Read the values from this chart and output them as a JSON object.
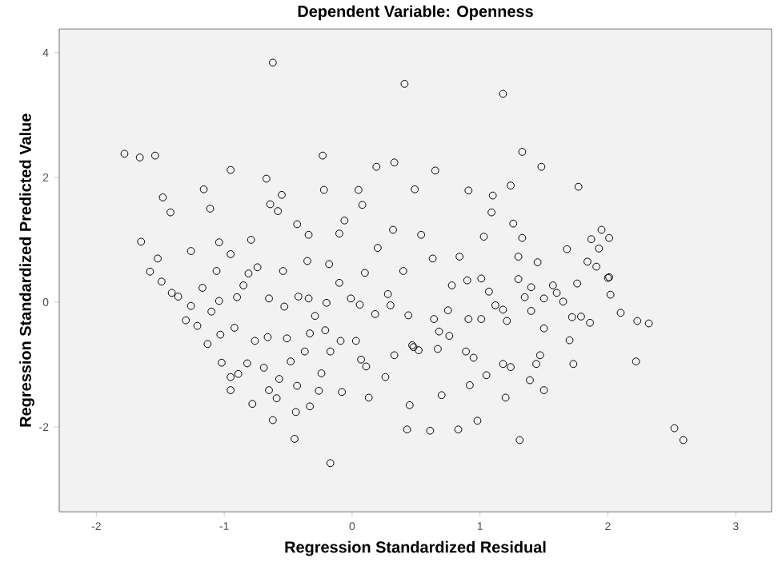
{
  "chart_data": {
    "type": "scatter",
    "title": "Dependent Variable: Openness",
    "xlabel": "Regression Standardized Residual",
    "ylabel": "Regression Standardized Predicted Value",
    "xlim": [
      -2.29,
      3.28
    ],
    "ylim": [
      -3.36,
      4.38
    ],
    "xticks": [
      -2,
      -1,
      0,
      1,
      2,
      3
    ],
    "yticks": [
      -2,
      0,
      2,
      4
    ],
    "marker": "circle",
    "grid": false,
    "series": [
      {
        "color": "#000000",
        "x": [
          -0.62,
          -1.78,
          -1.66,
          -1.54,
          0.41,
          -0.23,
          -0.95,
          -0.67,
          -1.16,
          -1.48,
          -1.42,
          -1.11,
          -0.55,
          -0.64,
          -0.58,
          -0.22,
          0.05,
          0.19,
          0.33,
          0.08,
          -0.06,
          -0.43,
          -1.04,
          -1.65,
          -1.26,
          -0.79,
          -0.34,
          -0.1,
          0.32,
          0.2,
          -0.18,
          -0.95,
          -1.52,
          -0.35,
          0.1,
          0.4,
          -1.58,
          1.18,
          1.33,
          1.48,
          0.65,
          0.49,
          0.91,
          1.1,
          1.24,
          1.77,
          1.09,
          1.26,
          1.33,
          1.03,
          0.54,
          1.95,
          2.01,
          1.87,
          1.93,
          1.68,
          1.3,
          0.84,
          0.63,
          1.84,
          1.91,
          1.45,
          2.01,
          -0.17,
          -0.45,
          -0.62,
          -0.78,
          -0.95,
          -0.95,
          -1.13,
          -1.3,
          -1.49,
          -0.44,
          -0.33,
          -0.26,
          -0.08,
          0.13,
          0.26,
          0.07,
          0.11,
          0.33,
          0.45,
          0.43,
          -0.24,
          -0.43,
          -0.59,
          -0.69,
          -0.89,
          -1.02,
          -0.82,
          -0.65,
          -0.57,
          -0.48,
          -0.37,
          -0.17,
          -0.09,
          0.03,
          -0.21,
          -0.33,
          -0.51,
          -0.66,
          -0.76,
          -0.92,
          -1.03,
          -1.21,
          -1.1,
          -1.26,
          -1.36,
          -1.41,
          -1.17,
          -1.04,
          -0.9,
          -0.85,
          -0.65,
          -0.53,
          -0.42,
          -0.34,
          -0.2,
          -0.29,
          -0.01,
          0.06,
          0.18,
          0.28,
          0.3,
          0.44,
          0.48,
          -0.1,
          -0.54,
          -1.06,
          -0.74,
          -0.81,
          2.59,
          2.52,
          1.31,
          0.98,
          0.83,
          0.61,
          0.7,
          1.2,
          1.5,
          1.39,
          0.92,
          1.05,
          1.18,
          1.24,
          1.44,
          1.47,
          1.73,
          2.22,
          2.32,
          2.23,
          2.1,
          2.02,
          2.0,
          1.86,
          1.79,
          1.7,
          1.5,
          0.95,
          0.89,
          0.67,
          0.52,
          0.47,
          0.76,
          0.68,
          0.64,
          0.91,
          1.01,
          1.21,
          1.12,
          1.18,
          0.75,
          0.78,
          0.9,
          1.01,
          1.07,
          1.3,
          1.4,
          1.35,
          1.5,
          1.4,
          1.57,
          1.65,
          1.76,
          1.6,
          1.72
        ],
        "values": [
          3.84,
          2.38,
          2.32,
          2.35,
          3.5,
          2.35,
          2.12,
          1.98,
          1.81,
          1.68,
          1.44,
          1.5,
          1.72,
          1.57,
          1.46,
          1.8,
          1.8,
          2.17,
          2.24,
          1.56,
          1.31,
          1.25,
          0.96,
          0.97,
          0.82,
          1.0,
          1.08,
          1.1,
          1.16,
          0.87,
          0.61,
          0.77,
          0.7,
          0.66,
          0.47,
          0.5,
          0.49,
          3.34,
          2.41,
          2.17,
          2.11,
          1.81,
          1.79,
          1.71,
          1.87,
          1.85,
          1.44,
          1.26,
          1.03,
          1.05,
          1.08,
          1.16,
          1.03,
          1.01,
          0.86,
          0.85,
          0.73,
          0.73,
          0.7,
          0.65,
          0.57,
          0.64,
          0.4,
          -2.58,
          -2.19,
          -1.89,
          -1.63,
          -1.41,
          -1.2,
          -0.67,
          -0.29,
          0.33,
          -1.76,
          -1.67,
          -1.42,
          -1.44,
          -1.53,
          -1.2,
          -0.92,
          -1.03,
          -0.85,
          -1.65,
          -2.04,
          -1.14,
          -1.34,
          -1.54,
          -1.05,
          -1.15,
          -0.97,
          -0.98,
          -1.41,
          -1.23,
          -0.95,
          -0.79,
          -0.79,
          -0.62,
          -0.62,
          -0.45,
          -0.5,
          -0.58,
          -0.56,
          -0.62,
          -0.41,
          -0.52,
          -0.38,
          -0.15,
          -0.06,
          0.09,
          0.15,
          0.23,
          0.02,
          0.08,
          0.27,
          0.06,
          -0.07,
          0.09,
          0.06,
          -0.01,
          -0.22,
          0.06,
          -0.04,
          -0.19,
          0.13,
          -0.05,
          -0.21,
          -0.72,
          0.31,
          0.5,
          0.5,
          0.56,
          0.46,
          -2.21,
          -2.02,
          -2.21,
          -1.9,
          -2.04,
          -2.06,
          -1.49,
          -1.53,
          -1.41,
          -1.25,
          -1.33,
          -1.17,
          -0.99,
          -1.04,
          -0.99,
          -0.85,
          -0.99,
          -0.95,
          -0.34,
          -0.3,
          -0.17,
          0.12,
          0.39,
          -0.33,
          -0.23,
          -0.61,
          -0.42,
          -0.89,
          -0.79,
          -0.75,
          -0.77,
          -0.69,
          -0.54,
          -0.47,
          -0.27,
          -0.27,
          -0.27,
          -0.3,
          -0.05,
          -0.12,
          -0.13,
          0.27,
          0.35,
          0.38,
          0.17,
          0.37,
          0.24,
          0.08,
          0.06,
          -0.14,
          0.27,
          0.01,
          0.3,
          0.15,
          -0.24
        ]
      }
    ]
  }
}
